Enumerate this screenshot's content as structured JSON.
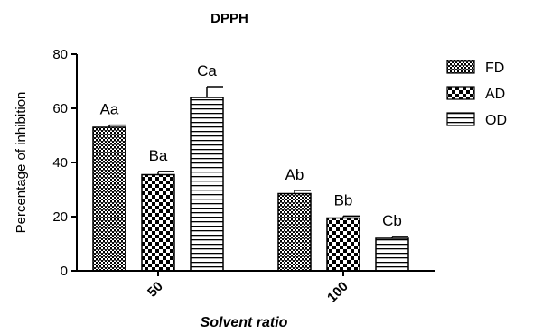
{
  "chart_data": {
    "type": "bar",
    "title": "DPPH",
    "xlabel": "Solvent ratio",
    "ylabel": "Percentage of inhibition",
    "ylim": [
      0,
      80
    ],
    "yticks": [
      0,
      20,
      40,
      60,
      80
    ],
    "grid": false,
    "legend_position": "right",
    "categories": [
      "50",
      "100"
    ],
    "series": [
      {
        "name": "FD",
        "pattern": "dense-cross",
        "values": [
          53,
          28.5
        ],
        "errors": [
          0.8,
          1.2
        ],
        "labels": [
          "Aa",
          "Ab"
        ]
      },
      {
        "name": "AD",
        "pattern": "checker",
        "values": [
          35.5,
          19.5
        ],
        "errors": [
          1.2,
          0.7
        ],
        "labels": [
          "Ba",
          "Bb"
        ]
      },
      {
        "name": "OD",
        "pattern": "horizontal-lines",
        "values": [
          64,
          12
        ],
        "errors": [
          4,
          0.7
        ],
        "labels": [
          "Ca",
          "Cb"
        ]
      }
    ]
  }
}
